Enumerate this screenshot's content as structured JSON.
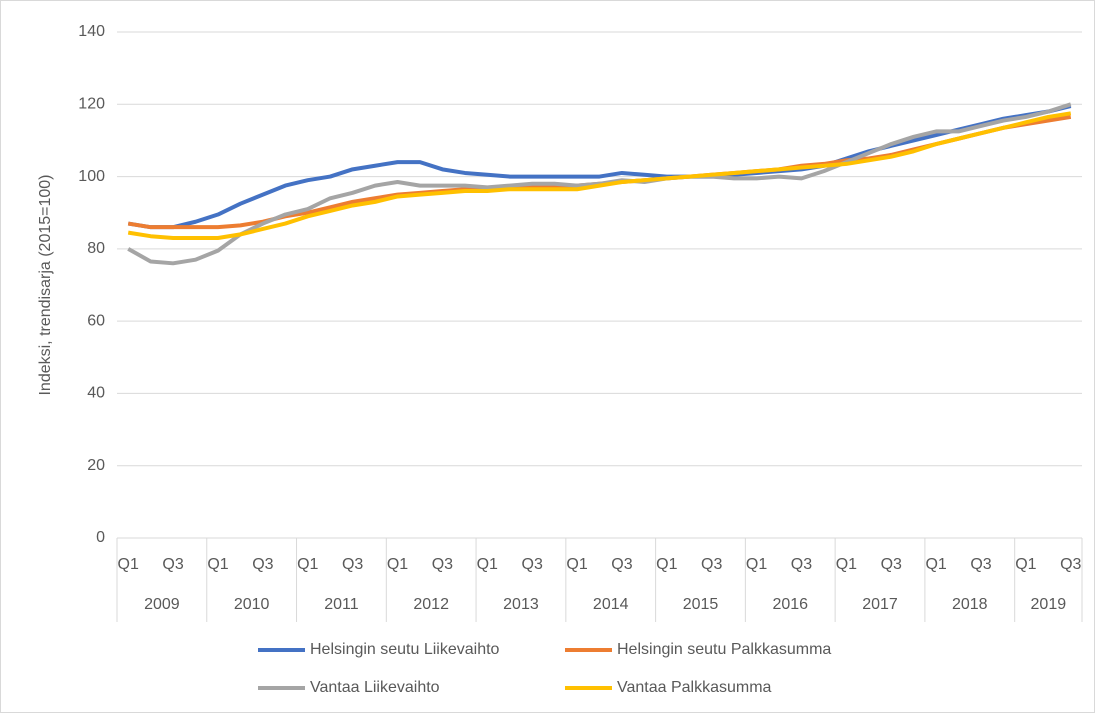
{
  "chart_data": {
    "type": "line",
    "y_label": "Indeksi, trendisarja (2015=100)",
    "categories": [
      "Q1",
      null,
      "Q3",
      null,
      "Q1",
      null,
      "Q3",
      null,
      "Q1",
      null,
      "Q3",
      null,
      "Q1",
      null,
      "Q3",
      null,
      "Q1",
      null,
      "Q3",
      null,
      "Q1",
      null,
      "Q3",
      null,
      "Q1",
      null,
      "Q3",
      null,
      "Q1",
      null,
      "Q3",
      null,
      "Q1",
      null,
      "Q3",
      null,
      "Q1",
      null,
      "Q3",
      null,
      "Q1",
      null,
      "Q3"
    ],
    "groups": [
      "2009",
      "2010",
      "2011",
      "2012",
      "2013",
      "2014",
      "2015",
      "2016",
      "2017",
      "2018",
      "2019"
    ],
    "series": [
      {
        "name": "Helsingin seutu Liikevaihto",
        "color": "#4472c4",
        "values": [
          87,
          86,
          86,
          87.5,
          89.5,
          92.5,
          95,
          97.5,
          99,
          100,
          102,
          103,
          104,
          104,
          102,
          101,
          100.5,
          100,
          100,
          100,
          100,
          100,
          101,
          100.5,
          100,
          100,
          100,
          100.5,
          101,
          101.5,
          102,
          103,
          105,
          107,
          108.5,
          110,
          111.5,
          113,
          114.5,
          116,
          117,
          118,
          119.5
        ]
      },
      {
        "name": "Helsingin seutu Palkkasumma",
        "color": "#ed7d31",
        "values": [
          87,
          86,
          86,
          86,
          86,
          86.5,
          87.5,
          89,
          90,
          91.5,
          93,
          94,
          95,
          95.5,
          96,
          96.5,
          96.5,
          97,
          97,
          97.5,
          97.5,
          98,
          98.5,
          99,
          99.5,
          100,
          100.5,
          101,
          101.5,
          102,
          103,
          103.5,
          104.5,
          105,
          106,
          107.5,
          109,
          110.5,
          112,
          113.5,
          114.5,
          115.5,
          116.5
        ]
      },
      {
        "name": "Vantaa Liikevaihto",
        "color": "#a5a5a5",
        "values": [
          80,
          76.5,
          76,
          77,
          79.5,
          84,
          87,
          89.5,
          91,
          94,
          95.5,
          97.5,
          98.5,
          97.5,
          97.5,
          97.5,
          97,
          97.5,
          98,
          98,
          97.5,
          98,
          99,
          98.5,
          99.5,
          100,
          100,
          99.5,
          99.5,
          100,
          99.5,
          101.5,
          104,
          106.5,
          109,
          111,
          112.5,
          112.5,
          114,
          115.5,
          116.5,
          118,
          120
        ]
      },
      {
        "name": "Vantaa Palkkasumma",
        "color": "#ffc000",
        "values": [
          84.5,
          83.5,
          83,
          83,
          83,
          84,
          85.5,
          87,
          89,
          90.5,
          92,
          93,
          94.5,
          95,
          95.5,
          96,
          96,
          96.5,
          96.5,
          96.5,
          96.5,
          97.5,
          98.5,
          99,
          99.5,
          100,
          100.5,
          101,
          101.5,
          102,
          102.5,
          103,
          103.5,
          104.5,
          105.5,
          107,
          109,
          110.5,
          112,
          113.5,
          115,
          116.5,
          117.5
        ]
      }
    ],
    "ylim": [
      0,
      140
    ],
    "yticks": [
      0,
      20,
      40,
      60,
      80,
      100,
      120,
      140
    ],
    "grid": true
  }
}
